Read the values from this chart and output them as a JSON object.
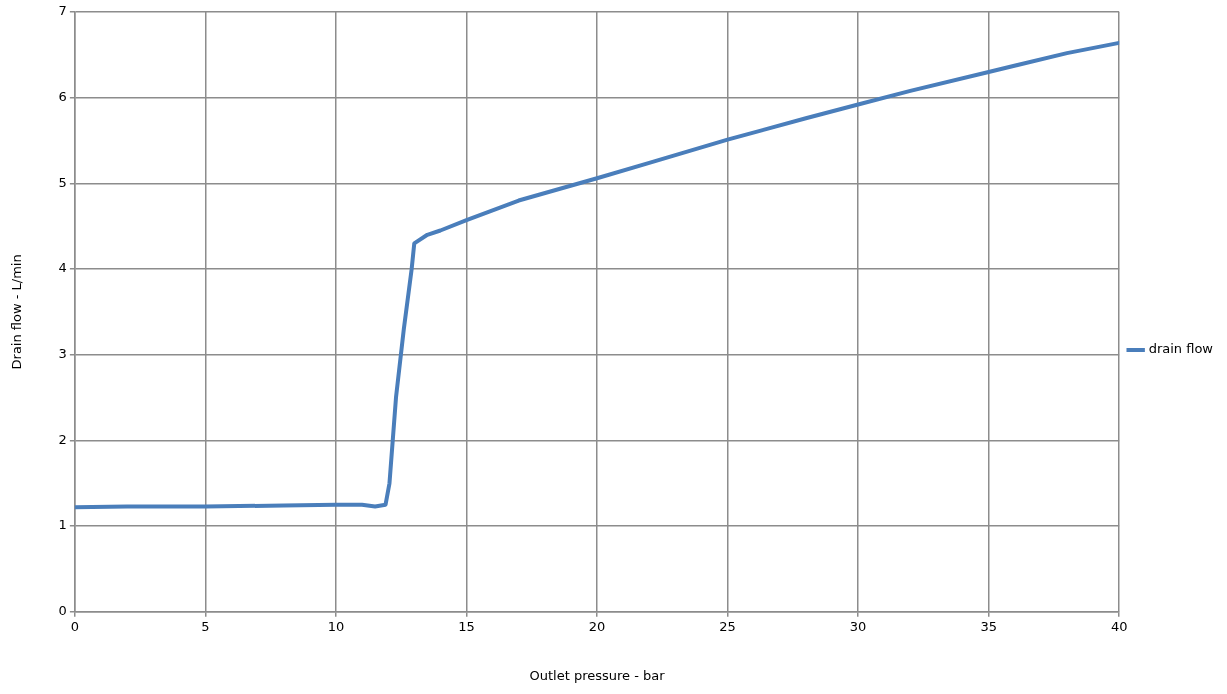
{
  "chart_data": {
    "type": "line",
    "xlabel": "Outlet pressure - bar",
    "ylabel": "Drain flow - L/min",
    "xlim": [
      0,
      40
    ],
    "xticks": [
      0,
      5,
      10,
      15,
      20,
      25,
      30,
      35,
      40
    ],
    "ylim": [
      0,
      7
    ],
    "yticks": [
      0,
      1,
      2,
      3,
      4,
      5,
      6,
      7
    ],
    "grid": true,
    "legend": "right",
    "marker": "none",
    "line_style": "solid",
    "series": [
      {
        "name": "drain flow",
        "color": "#4a7ebb",
        "x": [
          0,
          2,
          5,
          8,
          10,
          11,
          11.5,
          11.9,
          12.05,
          12.3,
          12.6,
          12.9,
          13,
          13.5,
          14,
          15,
          17,
          20,
          22,
          25,
          28,
          30,
          32,
          35,
          38,
          40
        ],
        "values": [
          1.22,
          1.23,
          1.23,
          1.24,
          1.25,
          1.25,
          1.23,
          1.25,
          1.5,
          2.5,
          3.3,
          4.0,
          4.3,
          4.4,
          4.45,
          4.57,
          4.8,
          5.06,
          5.24,
          5.51,
          5.76,
          5.92,
          6.08,
          6.3,
          6.52,
          6.64
        ]
      }
    ]
  }
}
